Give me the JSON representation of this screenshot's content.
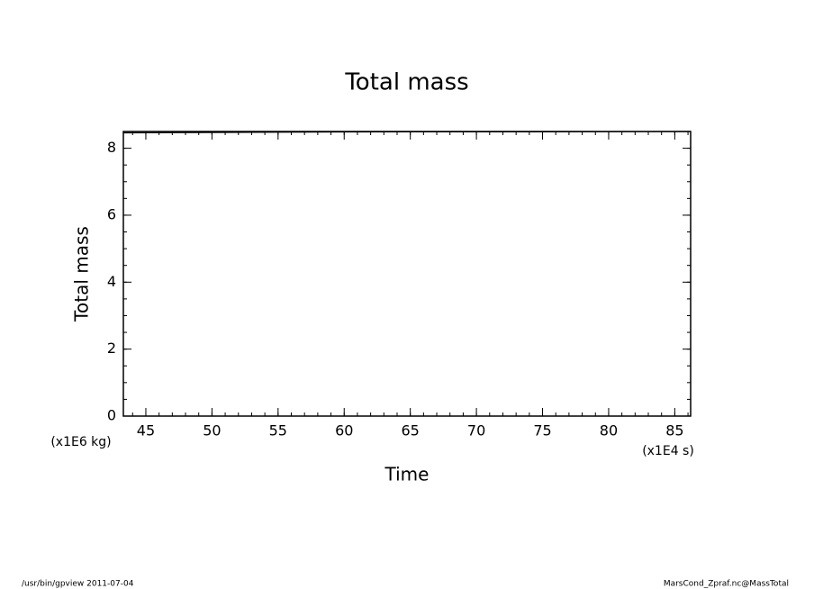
{
  "chart_data": {
    "type": "line",
    "title": "Total mass",
    "x_label": "Time",
    "y_label": "Total mass",
    "x_unit": "(x1E4 s)",
    "y_unit": "(x1E6 kg)",
    "footer_left": "/usr/bin/gpview  2011-07-04",
    "footer_right": "MarsCond_Zpraf.nc@MassTotal",
    "x": [
      43.3,
      55,
      65,
      75,
      86.2
    ],
    "series": [
      {
        "name": "Total mass",
        "color": "#000000",
        "values": [
          8.46,
          8.48,
          8.49,
          8.49,
          8.5
        ]
      }
    ],
    "xlim": [
      43.3,
      86.2
    ],
    "xticks": [
      45,
      50,
      55,
      60,
      65,
      70,
      75,
      80,
      85
    ],
    "x_minor_step": 1,
    "ylim": [
      0,
      8.5
    ],
    "yticks": [
      0,
      2,
      4,
      6,
      8
    ],
    "y_minor_step": 0.5
  }
}
